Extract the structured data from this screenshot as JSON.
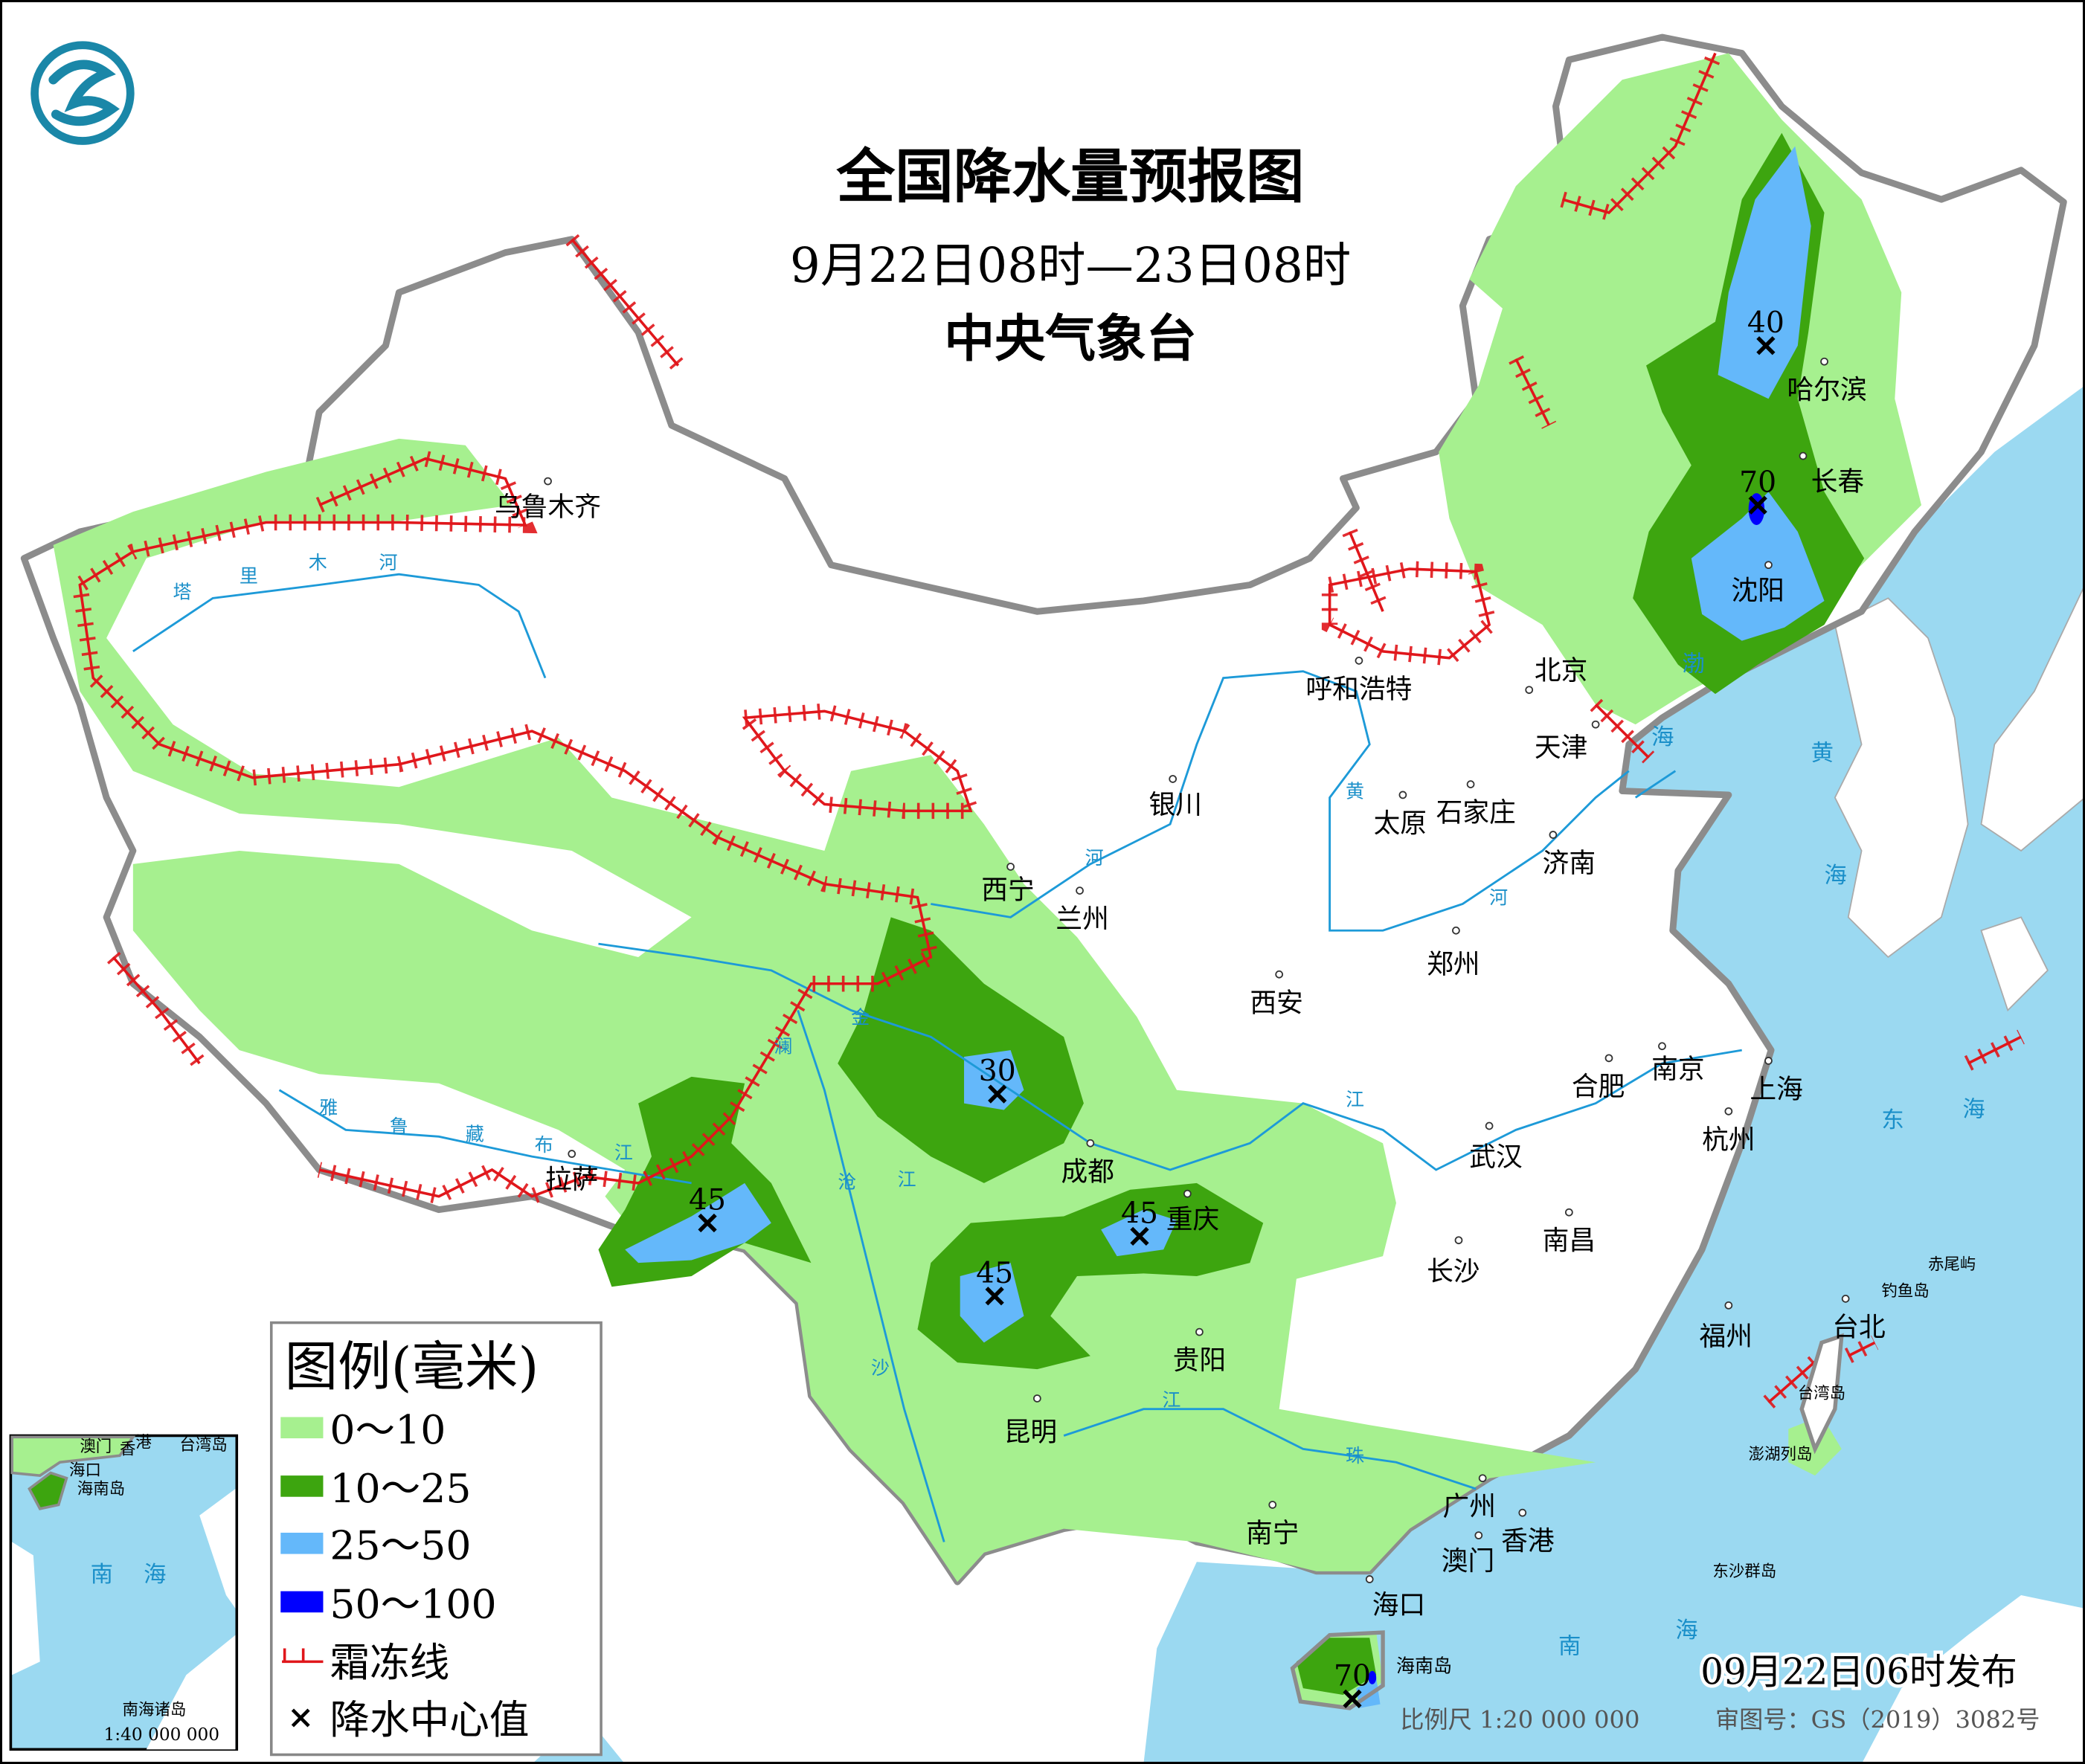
{
  "header": {
    "title": "全国降水量预报图",
    "period": "9月22日08时—23日08时",
    "issuer": "中央气象台"
  },
  "legend": {
    "title": "图例(毫米)",
    "items": [
      {
        "label": "0～10",
        "color": "#a6f08f"
      },
      {
        "label": "10～25",
        "color": "#3da50f"
      },
      {
        "label": "25～50",
        "color": "#64b8fa"
      },
      {
        "label": "50～100",
        "color": "#0000fe"
      },
      {
        "label": "霜冻线",
        "color": "#e0161b"
      },
      {
        "label": "降水中心值",
        "color": "#000000"
      }
    ]
  },
  "cities": [
    "乌鲁木齐",
    "哈尔滨",
    "长春",
    "沈阳",
    "呼和浩特",
    "北京",
    "天津",
    "银川",
    "太原",
    "石家庄",
    "济南",
    "西宁",
    "兰州",
    "郑州",
    "西安",
    "合肥",
    "南京",
    "上海",
    "杭州",
    "拉萨",
    "成都",
    "武汉",
    "重庆",
    "长沙",
    "南昌",
    "贵阳",
    "福州",
    "台北",
    "昆明",
    "南宁",
    "广州",
    "香港",
    "澳门",
    "海口"
  ],
  "small_labels": [
    "赤尾屿",
    "钓鱼岛",
    "台湾岛",
    "澎湖列岛",
    "东沙群岛",
    "海南岛"
  ],
  "seas": [
    "渤",
    "海",
    "黄",
    "海",
    "东",
    "海",
    "南",
    "海"
  ],
  "rivers": [
    "塔",
    "里",
    "木",
    "河",
    "雅",
    "鲁",
    "藏",
    "布",
    "江",
    "黄",
    "河",
    "河",
    "长",
    "江",
    "澜",
    "沧",
    "江",
    "金",
    "沙",
    "江",
    "珠",
    "江"
  ],
  "precip_centers": [
    "40",
    "70",
    "30",
    "45",
    "45",
    "45",
    "70"
  ],
  "inset": {
    "labels": [
      "澳门",
      "香",
      "港",
      "台湾岛",
      "海口",
      "海南岛",
      "南",
      "海",
      "南海诸岛"
    ],
    "scale": "1:40 000 000"
  },
  "footer": {
    "issued": "09月22日06时发布",
    "scale": "比例尺 1:20 000 000",
    "approval": "审图号：GS（2019）3082号"
  },
  "colors": {
    "ocean": "#9bd9f1",
    "border": "#8c8c8c",
    "frost_line": "#e0161b"
  }
}
